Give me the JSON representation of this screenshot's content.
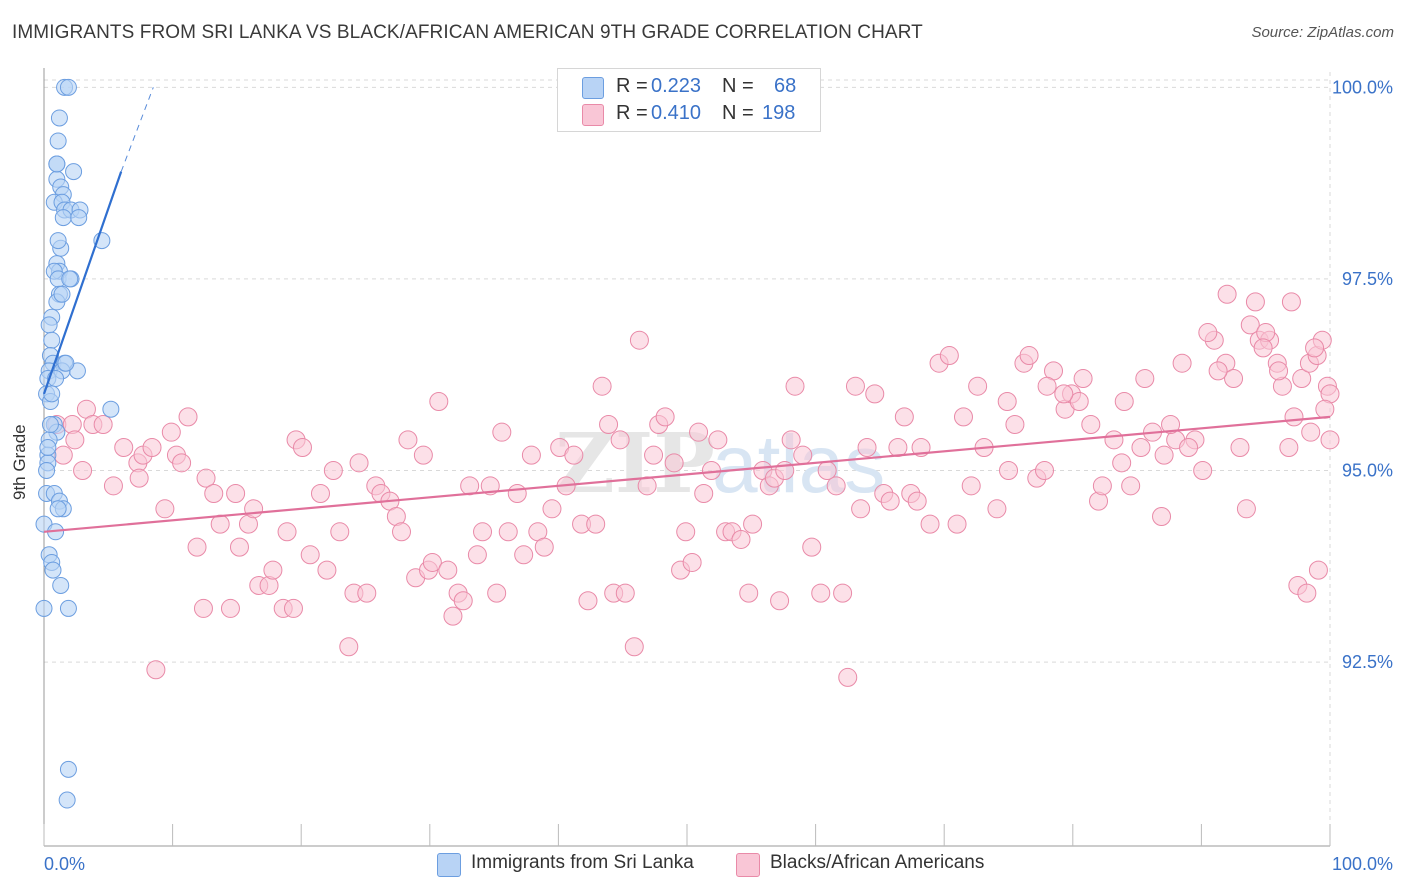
{
  "title": "IMMIGRANTS FROM SRI LANKA VS BLACK/AFRICAN AMERICAN 9TH GRADE CORRELATION CHART",
  "source": "Source: ZipAtlas.com",
  "watermark": "ZIPatlas",
  "legend": {
    "rows": [
      {
        "r_label": "R =",
        "r_value": "0.223",
        "n_label": "N =",
        "n_value": "68"
      },
      {
        "r_label": "R =",
        "r_value": "0.410",
        "n_label": "N =",
        "n_value": "198"
      }
    ]
  },
  "bottom_legend": {
    "series1": "Immigrants from Sri Lanka",
    "series2": "Blacks/African Americans"
  },
  "colors": {
    "blue_fill": "#b8d3f5",
    "blue_stroke": "#6c9ee0",
    "blue_line": "#2f6fd0",
    "pink_fill": "#f9c6d6",
    "pink_stroke": "#e98aa8",
    "pink_line": "#e0709a",
    "axis_value": "#3a72c8",
    "grid": "#d9d9d9"
  },
  "chart_data": {
    "type": "scatter",
    "title": "IMMIGRANTS FROM SRI LANKA VS BLACK/AFRICAN AMERICAN 9TH GRADE CORRELATION CHART",
    "xlabel": "",
    "ylabel": "9th Grade",
    "xlim": [
      0,
      100
    ],
    "ylim": [
      90.1,
      100.2
    ],
    "x_tick_labels": [
      "0.0%",
      "100.0%"
    ],
    "y_ticks": [
      92.5,
      95.0,
      97.5,
      100.0
    ],
    "y_tick_labels": [
      "92.5%",
      "95.0%",
      "97.5%",
      "100.0%"
    ],
    "grid": true,
    "series": [
      {
        "name": "Immigrants from Sri Lanka",
        "r": 0.223,
        "n": 68,
        "trend": {
          "x0": 0.0,
          "y0": 96.0,
          "x1": 6.0,
          "y1": 98.9,
          "dashed_to_x": 8.5,
          "dashed_to_y": 100.0
        },
        "points": [
          [
            1.6,
            100.0
          ],
          [
            1.9,
            100.0
          ],
          [
            1.2,
            99.6
          ],
          [
            1.1,
            99.3
          ],
          [
            1.0,
            99.0
          ],
          [
            2.3,
            98.9
          ],
          [
            1.0,
            98.8
          ],
          [
            1.3,
            98.7
          ],
          [
            1.5,
            98.6
          ],
          [
            0.8,
            98.5
          ],
          [
            1.4,
            98.5
          ],
          [
            1.6,
            98.4
          ],
          [
            2.1,
            98.4
          ],
          [
            2.8,
            98.4
          ],
          [
            1.5,
            98.3
          ],
          [
            2.7,
            98.3
          ],
          [
            4.5,
            98.0
          ],
          [
            1.3,
            97.9
          ],
          [
            1.0,
            97.7
          ],
          [
            1.2,
            97.6
          ],
          [
            0.8,
            97.6
          ],
          [
            1.1,
            97.5
          ],
          [
            2.1,
            97.5
          ],
          [
            1.2,
            97.3
          ],
          [
            1.0,
            97.2
          ],
          [
            0.6,
            97.0
          ],
          [
            0.4,
            96.9
          ],
          [
            0.6,
            96.7
          ],
          [
            0.5,
            96.5
          ],
          [
            0.7,
            96.4
          ],
          [
            1.6,
            96.4
          ],
          [
            2.6,
            96.3
          ],
          [
            0.4,
            96.3
          ],
          [
            1.4,
            96.3
          ],
          [
            0.3,
            96.2
          ],
          [
            0.9,
            96.2
          ],
          [
            0.2,
            96.0
          ],
          [
            0.5,
            95.9
          ],
          [
            5.2,
            95.8
          ],
          [
            0.8,
            95.6
          ],
          [
            1.0,
            95.5
          ],
          [
            0.4,
            95.4
          ],
          [
            0.3,
            95.2
          ],
          [
            0.3,
            95.1
          ],
          [
            0.2,
            95.0
          ],
          [
            0.2,
            94.7
          ],
          [
            0.8,
            94.7
          ],
          [
            1.2,
            94.6
          ],
          [
            1.5,
            94.5
          ],
          [
            1.1,
            94.5
          ],
          [
            0.0,
            94.3
          ],
          [
            0.4,
            93.9
          ],
          [
            0.6,
            93.8
          ],
          [
            0.7,
            93.7
          ],
          [
            1.3,
            93.5
          ],
          [
            1.9,
            93.2
          ],
          [
            0.0,
            93.2
          ],
          [
            1.9,
            91.1
          ],
          [
            1.8,
            90.7
          ],
          [
            0.3,
            95.3
          ],
          [
            0.6,
            96.0
          ],
          [
            1.4,
            97.3
          ],
          [
            1.1,
            98.0
          ],
          [
            0.9,
            94.2
          ],
          [
            1.7,
            96.4
          ],
          [
            0.5,
            95.6
          ],
          [
            2.0,
            97.5
          ],
          [
            1.0,
            99.0
          ]
        ]
      },
      {
        "name": "Blacks/African Americans",
        "r": 0.41,
        "n": 198,
        "trend": {
          "x0": 0.0,
          "y0": 94.2,
          "x1": 100.0,
          "y1": 95.7
        },
        "points": [
          [
            1.0,
            95.6
          ],
          [
            1.5,
            95.2
          ],
          [
            2.2,
            95.6
          ],
          [
            2.4,
            95.4
          ],
          [
            3.0,
            95.0
          ],
          [
            3.3,
            95.8
          ],
          [
            3.8,
            95.6
          ],
          [
            4.6,
            95.6
          ],
          [
            5.4,
            94.8
          ],
          [
            6.2,
            95.3
          ],
          [
            7.3,
            95.1
          ],
          [
            7.4,
            94.9
          ],
          [
            7.7,
            95.2
          ],
          [
            8.4,
            95.3
          ],
          [
            8.7,
            92.4
          ],
          [
            9.4,
            94.5
          ],
          [
            9.9,
            95.5
          ],
          [
            10.3,
            95.2
          ],
          [
            10.7,
            95.1
          ],
          [
            11.2,
            95.7
          ],
          [
            11.9,
            94.0
          ],
          [
            12.4,
            93.2
          ],
          [
            12.6,
            94.9
          ],
          [
            13.2,
            94.7
          ],
          [
            13.7,
            94.3
          ],
          [
            14.5,
            93.2
          ],
          [
            14.9,
            94.7
          ],
          [
            15.2,
            94.0
          ],
          [
            15.9,
            94.3
          ],
          [
            16.3,
            94.5
          ],
          [
            16.7,
            93.5
          ],
          [
            17.5,
            93.5
          ],
          [
            17.8,
            93.7
          ],
          [
            18.6,
            93.2
          ],
          [
            18.9,
            94.2
          ],
          [
            19.4,
            93.2
          ],
          [
            19.6,
            95.4
          ],
          [
            20.1,
            95.3
          ],
          [
            20.7,
            93.9
          ],
          [
            21.5,
            94.7
          ],
          [
            22.0,
            93.7
          ],
          [
            22.5,
            95.0
          ],
          [
            23.0,
            94.2
          ],
          [
            23.7,
            92.7
          ],
          [
            24.1,
            93.4
          ],
          [
            24.5,
            95.1
          ],
          [
            25.1,
            93.4
          ],
          [
            25.8,
            94.8
          ],
          [
            26.2,
            94.7
          ],
          [
            26.9,
            94.6
          ],
          [
            27.4,
            94.4
          ],
          [
            27.8,
            94.2
          ],
          [
            28.3,
            95.4
          ],
          [
            28.9,
            93.6
          ],
          [
            29.5,
            95.2
          ],
          [
            29.9,
            93.7
          ],
          [
            30.2,
            93.8
          ],
          [
            30.7,
            95.9
          ],
          [
            31.4,
            93.7
          ],
          [
            31.8,
            93.1
          ],
          [
            32.2,
            93.4
          ],
          [
            32.6,
            93.3
          ],
          [
            33.1,
            94.8
          ],
          [
            33.7,
            93.9
          ],
          [
            34.1,
            94.2
          ],
          [
            34.7,
            94.8
          ],
          [
            35.2,
            93.4
          ],
          [
            35.6,
            95.5
          ],
          [
            36.1,
            94.2
          ],
          [
            36.8,
            94.7
          ],
          [
            37.3,
            93.9
          ],
          [
            37.9,
            95.2
          ],
          [
            38.4,
            94.2
          ],
          [
            38.9,
            94.0
          ],
          [
            39.5,
            94.5
          ],
          [
            40.1,
            95.3
          ],
          [
            40.6,
            94.8
          ],
          [
            41.2,
            95.2
          ],
          [
            41.8,
            94.3
          ],
          [
            42.3,
            93.3
          ],
          [
            42.9,
            94.3
          ],
          [
            43.4,
            96.1
          ],
          [
            43.9,
            95.6
          ],
          [
            44.3,
            93.4
          ],
          [
            44.8,
            95.4
          ],
          [
            45.2,
            93.4
          ],
          [
            45.9,
            92.7
          ],
          [
            46.3,
            96.7
          ],
          [
            46.9,
            94.8
          ],
          [
            47.4,
            95.2
          ],
          [
            47.8,
            95.6
          ],
          [
            48.3,
            95.7
          ],
          [
            49.0,
            95.1
          ],
          [
            49.5,
            93.7
          ],
          [
            49.9,
            94.2
          ],
          [
            50.4,
            93.8
          ],
          [
            50.9,
            95.5
          ],
          [
            51.3,
            94.7
          ],
          [
            51.9,
            95.0
          ],
          [
            52.4,
            95.4
          ],
          [
            53.0,
            94.2
          ],
          [
            53.5,
            94.2
          ],
          [
            54.2,
            94.1
          ],
          [
            54.8,
            93.4
          ],
          [
            55.1,
            94.3
          ],
          [
            55.9,
            95.0
          ],
          [
            56.4,
            94.8
          ],
          [
            56.8,
            94.9
          ],
          [
            57.2,
            93.3
          ],
          [
            57.6,
            95.0
          ],
          [
            58.1,
            95.4
          ],
          [
            58.4,
            96.1
          ],
          [
            59.0,
            95.2
          ],
          [
            59.7,
            94.0
          ],
          [
            60.4,
            93.4
          ],
          [
            60.9,
            95.0
          ],
          [
            61.6,
            94.8
          ],
          [
            62.1,
            93.4
          ],
          [
            62.5,
            92.3
          ],
          [
            63.1,
            96.1
          ],
          [
            63.5,
            94.5
          ],
          [
            64.0,
            95.3
          ],
          [
            64.6,
            96.0
          ],
          [
            65.3,
            94.7
          ],
          [
            65.8,
            94.6
          ],
          [
            66.4,
            95.3
          ],
          [
            66.9,
            95.7
          ],
          [
            67.4,
            94.7
          ],
          [
            67.9,
            94.6
          ],
          [
            68.2,
            95.3
          ],
          [
            68.9,
            94.3
          ],
          [
            69.6,
            96.4
          ],
          [
            70.4,
            96.5
          ],
          [
            71.0,
            94.3
          ],
          [
            71.5,
            95.7
          ],
          [
            72.1,
            94.8
          ],
          [
            72.6,
            96.1
          ],
          [
            73.1,
            95.3
          ],
          [
            74.1,
            94.5
          ],
          [
            75.0,
            95.0
          ],
          [
            75.5,
            95.6
          ],
          [
            76.2,
            96.4
          ],
          [
            77.2,
            94.9
          ],
          [
            77.8,
            95.0
          ],
          [
            78.5,
            96.3
          ],
          [
            79.4,
            95.8
          ],
          [
            79.9,
            96.0
          ],
          [
            80.5,
            95.9
          ],
          [
            81.4,
            95.6
          ],
          [
            82.0,
            94.6
          ],
          [
            82.3,
            94.8
          ],
          [
            83.2,
            95.4
          ],
          [
            83.8,
            95.1
          ],
          [
            84.5,
            94.8
          ],
          [
            85.3,
            95.3
          ],
          [
            86.2,
            95.5
          ],
          [
            86.9,
            94.4
          ],
          [
            87.1,
            95.2
          ],
          [
            88.0,
            95.4
          ],
          [
            88.5,
            96.4
          ],
          [
            89.5,
            95.4
          ],
          [
            90.1,
            95.0
          ],
          [
            91.0,
            96.7
          ],
          [
            91.9,
            96.4
          ],
          [
            92.5,
            96.2
          ],
          [
            93.0,
            95.3
          ],
          [
            93.8,
            96.9
          ],
          [
            94.5,
            96.7
          ],
          [
            95.3,
            96.7
          ],
          [
            95.9,
            96.4
          ],
          [
            96.8,
            95.3
          ],
          [
            97.2,
            95.7
          ],
          [
            97.8,
            96.2
          ],
          [
            98.4,
            96.4
          ],
          [
            99.0,
            96.5
          ],
          [
            99.4,
            96.7
          ],
          [
            99.8,
            96.1
          ],
          [
            100.0,
            95.4
          ],
          [
            93.5,
            94.5
          ],
          [
            96.3,
            96.1
          ],
          [
            97.5,
            93.5
          ],
          [
            98.2,
            93.4
          ],
          [
            99.1,
            93.7
          ],
          [
            95.0,
            96.8
          ],
          [
            90.5,
            96.8
          ],
          [
            92.0,
            97.3
          ],
          [
            94.8,
            96.6
          ],
          [
            97.0,
            97.2
          ],
          [
            98.8,
            96.6
          ],
          [
            96.0,
            96.3
          ],
          [
            100.0,
            96.0
          ],
          [
            99.6,
            95.8
          ],
          [
            98.5,
            95.5
          ],
          [
            94.2,
            97.2
          ],
          [
            91.3,
            96.3
          ],
          [
            89.0,
            95.3
          ],
          [
            87.6,
            95.6
          ],
          [
            85.6,
            96.2
          ],
          [
            84.0,
            95.9
          ],
          [
            80.8,
            96.2
          ],
          [
            79.3,
            96.0
          ],
          [
            78.0,
            96.1
          ],
          [
            76.6,
            96.5
          ],
          [
            74.9,
            95.9
          ]
        ]
      }
    ]
  }
}
